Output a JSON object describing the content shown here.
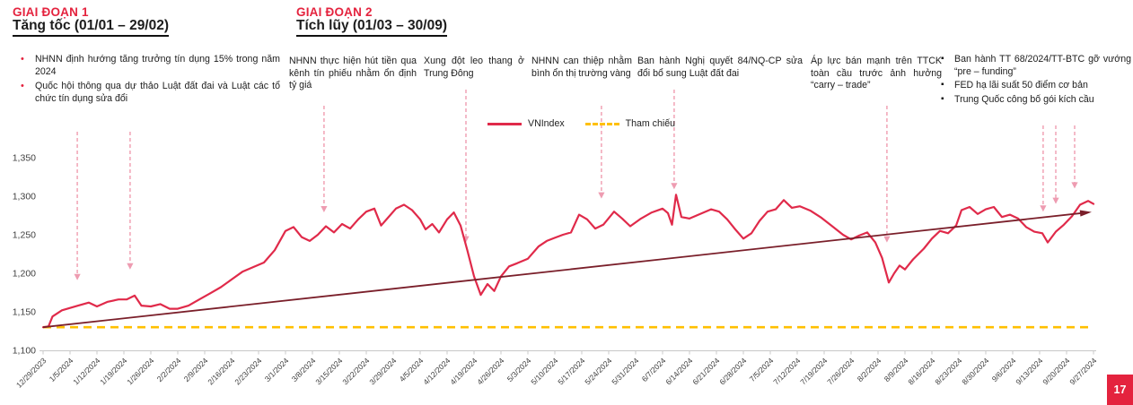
{
  "colors": {
    "accent_red": "#e4233e",
    "line_red": "#e02a4a",
    "reference_yellow": "#FFC000",
    "trend_dark_red": "#7a1f2a",
    "event_arrow_pink": "#f2a9ba",
    "event_arrow_head_pink": "#ee9cb1",
    "axis_gray": "#c8c8c8",
    "label_gray": "#404040"
  },
  "page": {
    "number": "17"
  },
  "phase1": {
    "title": "GIAI ĐOẠN 1",
    "subtitle": "Tăng tốc (01/01 – 29/02)",
    "bullets": [
      "NHNN định hướng tăng trưởng tín dụng 15% trong năm 2024",
      "Quốc hội thông qua dự thảo Luật đất đai và Luật các tổ chức tín dụng sửa đổi"
    ]
  },
  "phase2": {
    "title": "GIAI ĐOẠN 2",
    "subtitle": "Tích lũy (01/03 – 30/09)",
    "notes": [
      "NHNN thực hiện hút tiền qua kênh tín phiếu nhằm ổn định tỷ giá",
      "Xung đột leo thang ở Trung Đông",
      "NHNN can thiệp nhằm bình ổn thị trường vàng",
      "Ban hành Nghị quyết 84/NQ-CP sửa đổi bổ sung Luật đất đai",
      "Áp lực bán mạnh trên TTCK toàn cầu trước ảnh hưởng “carry – trade”"
    ],
    "bullet_notes": [
      "Ban hành TT 68/2024/TT-BTC gỡ vướng “pre – funding”",
      "FED hạ lãi suất 50 điểm cơ bản",
      "Trung Quốc công bố gói kích cầu"
    ]
  },
  "legend": {
    "series1": "VNIndex",
    "series2": "Tham chiếu"
  },
  "chart_data": {
    "type": "line",
    "title": "",
    "ylim": [
      1100,
      1350
    ],
    "yticks": [
      1100,
      1150,
      1200,
      1250,
      1300,
      1350
    ],
    "ytick_labels": [
      "1,100",
      "1,150",
      "1,200",
      "1,250",
      "1,300",
      "1,350"
    ],
    "grid": false,
    "legend_position": "top-center",
    "x_labels": [
      "12/29/2023",
      "1/5/2024",
      "1/12/2024",
      "1/19/2024",
      "1/26/2024",
      "2/2/2024",
      "2/9/2024",
      "2/16/2024",
      "2/23/2024",
      "3/1/2024",
      "3/8/2024",
      "3/15/2024",
      "3/22/2024",
      "3/29/2024",
      "4/5/2024",
      "4/12/2024",
      "4/19/2024",
      "4/26/2024",
      "5/3/2024",
      "5/10/2024",
      "5/17/2024",
      "5/24/2024",
      "5/31/2024",
      "6/7/2024",
      "6/14/2024",
      "6/21/2024",
      "6/28/2024",
      "7/5/2024",
      "7/12/2024",
      "7/19/2024",
      "7/26/2024",
      "8/2/2024",
      "8/9/2024",
      "8/16/2024",
      "8/23/2024",
      "8/30/2024",
      "9/6/2024",
      "9/13/2024",
      "9/20/2024",
      "9/27/2024"
    ],
    "series": [
      {
        "name": "VNIndex",
        "style": "solid",
        "points_week_value": [
          [
            0,
            1130
          ],
          [
            0.2,
            1131
          ],
          [
            0.35,
            1144
          ],
          [
            0.7,
            1152
          ],
          [
            1,
            1155
          ],
          [
            1.3,
            1158
          ],
          [
            1.7,
            1162
          ],
          [
            2,
            1157
          ],
          [
            2.4,
            1163
          ],
          [
            2.8,
            1166
          ],
          [
            3.1,
            1166
          ],
          [
            3.4,
            1171
          ],
          [
            3.65,
            1158
          ],
          [
            4,
            1157
          ],
          [
            4.35,
            1160
          ],
          [
            4.7,
            1154
          ],
          [
            5,
            1154
          ],
          [
            5.4,
            1158
          ],
          [
            5.8,
            1166
          ],
          [
            6.2,
            1174
          ],
          [
            6.6,
            1182
          ],
          [
            7,
            1192
          ],
          [
            7.4,
            1202
          ],
          [
            7.8,
            1208
          ],
          [
            8.2,
            1214
          ],
          [
            8.6,
            1230
          ],
          [
            9,
            1255
          ],
          [
            9.3,
            1260
          ],
          [
            9.6,
            1247
          ],
          [
            9.9,
            1242
          ],
          [
            10.2,
            1250
          ],
          [
            10.5,
            1261
          ],
          [
            10.8,
            1253
          ],
          [
            11.1,
            1264
          ],
          [
            11.4,
            1258
          ],
          [
            11.7,
            1270
          ],
          [
            12,
            1280
          ],
          [
            12.3,
            1284
          ],
          [
            12.55,
            1262
          ],
          [
            12.8,
            1272
          ],
          [
            13.1,
            1284
          ],
          [
            13.4,
            1289
          ],
          [
            13.7,
            1282
          ],
          [
            14,
            1270
          ],
          [
            14.2,
            1257
          ],
          [
            14.45,
            1264
          ],
          [
            14.7,
            1253
          ],
          [
            15,
            1270
          ],
          [
            15.25,
            1279
          ],
          [
            15.5,
            1262
          ],
          [
            15.75,
            1230
          ],
          [
            16,
            1196
          ],
          [
            16.25,
            1172
          ],
          [
            16.5,
            1186
          ],
          [
            16.75,
            1177
          ],
          [
            17,
            1196
          ],
          [
            17.3,
            1209
          ],
          [
            17.6,
            1213
          ],
          [
            18,
            1219
          ],
          [
            18.4,
            1235
          ],
          [
            18.7,
            1242
          ],
          [
            19,
            1246
          ],
          [
            19.3,
            1250
          ],
          [
            19.6,
            1253
          ],
          [
            19.9,
            1276
          ],
          [
            20.2,
            1270
          ],
          [
            20.5,
            1258
          ],
          [
            20.8,
            1263
          ],
          [
            21.2,
            1280
          ],
          [
            21.5,
            1271
          ],
          [
            21.8,
            1261
          ],
          [
            22.2,
            1271
          ],
          [
            22.6,
            1279
          ],
          [
            23,
            1284
          ],
          [
            23.2,
            1278
          ],
          [
            23.35,
            1263
          ],
          [
            23.5,
            1302
          ],
          [
            23.7,
            1273
          ],
          [
            24,
            1271
          ],
          [
            24.4,
            1277
          ],
          [
            24.8,
            1283
          ],
          [
            25.1,
            1280
          ],
          [
            25.4,
            1270
          ],
          [
            25.7,
            1257
          ],
          [
            26,
            1245
          ],
          [
            26.3,
            1252
          ],
          [
            26.6,
            1268
          ],
          [
            26.9,
            1280
          ],
          [
            27.2,
            1283
          ],
          [
            27.5,
            1295
          ],
          [
            27.8,
            1285
          ],
          [
            28.1,
            1287
          ],
          [
            28.5,
            1281
          ],
          [
            28.9,
            1272
          ],
          [
            29.3,
            1261
          ],
          [
            29.7,
            1250
          ],
          [
            30,
            1244
          ],
          [
            30.3,
            1249
          ],
          [
            30.6,
            1253
          ],
          [
            30.9,
            1240
          ],
          [
            31.15,
            1220
          ],
          [
            31.4,
            1188
          ],
          [
            31.6,
            1200
          ],
          [
            31.8,
            1210
          ],
          [
            32,
            1205
          ],
          [
            32.3,
            1218
          ],
          [
            32.7,
            1232
          ],
          [
            33,
            1245
          ],
          [
            33.3,
            1255
          ],
          [
            33.6,
            1252
          ],
          [
            33.9,
            1262
          ],
          [
            34.1,
            1282
          ],
          [
            34.4,
            1286
          ],
          [
            34.7,
            1277
          ],
          [
            35,
            1283
          ],
          [
            35.3,
            1286
          ],
          [
            35.6,
            1273
          ],
          [
            35.9,
            1276
          ],
          [
            36.2,
            1271
          ],
          [
            36.5,
            1260
          ],
          [
            36.8,
            1254
          ],
          [
            37.1,
            1252
          ],
          [
            37.3,
            1240
          ],
          [
            37.6,
            1254
          ],
          [
            37.9,
            1263
          ],
          [
            38.2,
            1274
          ],
          [
            38.5,
            1289
          ],
          [
            38.8,
            1294
          ],
          [
            39,
            1290
          ]
        ]
      },
      {
        "name": "Tham chiếu",
        "style": "dashed",
        "value": 1130
      },
      {
        "name": "trend-arrow",
        "style": "arrow",
        "from": [
          0,
          1130
        ],
        "to": [
          38.8,
          1279
        ]
      }
    ],
    "event_arrows": [
      {
        "week": 1.27,
        "tip_value": 1191,
        "top_y": 147
      },
      {
        "week": 3.23,
        "tip_value": 1205,
        "top_y": 147
      },
      {
        "week": 10.43,
        "tip_value": 1279,
        "top_y": 118
      },
      {
        "week": 15.7,
        "tip_value": 1240,
        "top_y": 100
      },
      {
        "week": 20.73,
        "tip_value": 1297,
        "top_y": 118
      },
      {
        "week": 23.43,
        "tip_value": 1309,
        "top_y": 100
      },
      {
        "week": 31.33,
        "tip_value": 1240,
        "top_y": 118
      },
      {
        "week": 37.13,
        "tip_value": 1280,
        "top_y": 140
      },
      {
        "week": 37.6,
        "tip_value": 1290,
        "top_y": 140
      },
      {
        "week": 38.3,
        "tip_value": 1310,
        "top_y": 140
      }
    ]
  }
}
